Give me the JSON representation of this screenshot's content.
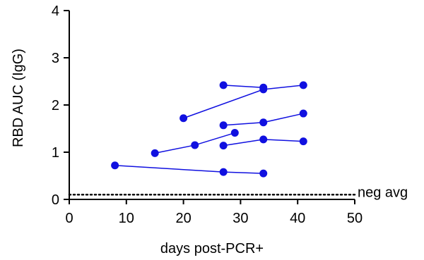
{
  "chart_data": {
    "type": "line",
    "title": "",
    "xlabel": "days post-PCR+",
    "ylabel": "RBD AUC (IgG)",
    "xlim": [
      0,
      50
    ],
    "ylim": [
      0,
      4
    ],
    "xticks": [
      "0",
      "10",
      "20",
      "30",
      "40",
      "50"
    ],
    "yticks": [
      "0",
      "1",
      "2",
      "3",
      "4"
    ],
    "grid": false,
    "color": "#1010e0",
    "reference_line": {
      "y": 0.1,
      "label": "neg avg",
      "style": "dotted"
    },
    "series": [
      {
        "points": [
          [
            27,
            2.42
          ],
          [
            34,
            2.37
          ]
        ]
      },
      {
        "points": [
          [
            20,
            1.72
          ],
          [
            34,
            2.33
          ],
          [
            41,
            2.42
          ]
        ]
      },
      {
        "points": [
          [
            27,
            1.57
          ],
          [
            34,
            1.63
          ],
          [
            41,
            1.82
          ]
        ]
      },
      {
        "points": [
          [
            15,
            0.98
          ],
          [
            22,
            1.15
          ],
          [
            29,
            1.41
          ]
        ]
      },
      {
        "points": [
          [
            27,
            1.14
          ],
          [
            34,
            1.27
          ],
          [
            41,
            1.23
          ]
        ]
      },
      {
        "points": [
          [
            8,
            0.72
          ],
          [
            27,
            0.58
          ],
          [
            34,
            0.55
          ]
        ]
      }
    ]
  }
}
